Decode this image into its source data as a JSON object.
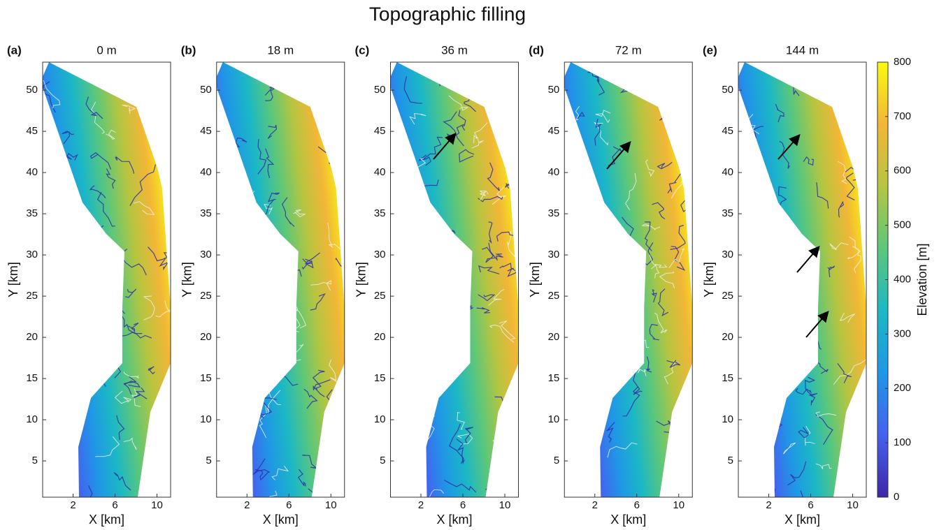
{
  "title": "Topographic filling",
  "chart_data": [
    {
      "type": "map",
      "panel": "(a)",
      "title": "0 m",
      "xlabel": "X [km]",
      "ylabel": "Y [km]",
      "xlim": [
        -0.9,
        11.3
      ],
      "ylim": [
        0.6,
        53.4
      ],
      "xticks": [
        2,
        6,
        10
      ],
      "yticks": [
        5,
        10,
        15,
        20,
        25,
        30,
        35,
        40,
        45,
        50
      ]
    },
    {
      "type": "map",
      "panel": "(b)",
      "title": "18 m",
      "xlabel": "X [km]",
      "ylabel": "Y [km]",
      "xlim": [
        -0.9,
        11.3
      ],
      "ylim": [
        0.6,
        53.4
      ],
      "xticks": [
        2,
        6,
        10
      ],
      "yticks": [
        5,
        10,
        15,
        20,
        25,
        30,
        35,
        40,
        45,
        50
      ]
    },
    {
      "type": "map",
      "panel": "(c)",
      "title": "36 m",
      "xlabel": "X [km]",
      "ylabel": "Y [km]",
      "xlim": [
        -0.9,
        11.3
      ],
      "ylim": [
        0.6,
        53.4
      ],
      "xticks": [
        2,
        6,
        10
      ],
      "yticks": [
        5,
        10,
        15,
        20,
        25,
        30,
        35,
        40,
        45,
        50
      ]
    },
    {
      "type": "map",
      "panel": "(d)",
      "title": "72 m",
      "xlabel": "X [km]",
      "ylabel": "Y [km]",
      "xlim": [
        -0.9,
        11.3
      ],
      "ylim": [
        0.6,
        53.4
      ],
      "xticks": [
        2,
        6,
        10
      ],
      "yticks": [
        5,
        10,
        15,
        20,
        25,
        30,
        35,
        40,
        45,
        50
      ]
    },
    {
      "type": "map",
      "panel": "(e)",
      "title": "144 m",
      "xlabel": "X [km]",
      "ylabel": "Y [km]",
      "xlim": [
        -0.9,
        11.3
      ],
      "ylim": [
        0.6,
        53.4
      ],
      "xticks": [
        2,
        6,
        10
      ],
      "yticks": [
        5,
        10,
        15,
        20,
        25,
        30,
        35,
        40,
        45,
        50
      ]
    }
  ],
  "colorbar": {
    "label": "Elevation [m]",
    "lim": [
      0,
      800
    ],
    "ticks": [
      0,
      100,
      200,
      300,
      400,
      500,
      600,
      700,
      800
    ],
    "colormap": [
      "#3e26a8",
      "#4561f0",
      "#1f97e6",
      "#1cb8c4",
      "#5cc77a",
      "#b6c540",
      "#f2b637",
      "#f9fb0e"
    ]
  }
}
